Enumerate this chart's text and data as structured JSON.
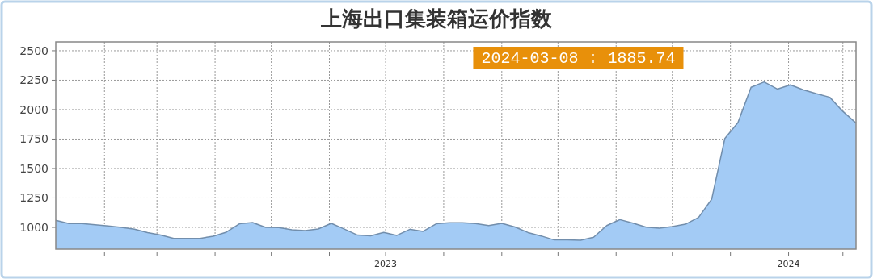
{
  "chart_data": {
    "type": "area",
    "title": "上海出口集装箱运价指数",
    "x": [
      "2023-01-06",
      "2023-01-13",
      "2023-01-20",
      "2023-01-27",
      "2023-02-03",
      "2023-02-10",
      "2023-02-17",
      "2023-02-24",
      "2023-03-03",
      "2023-03-10",
      "2023-03-17",
      "2023-03-24",
      "2023-03-31",
      "2023-04-07",
      "2023-04-14",
      "2023-04-21",
      "2023-04-28",
      "2023-05-05",
      "2023-05-12",
      "2023-05-19",
      "2023-05-26",
      "2023-06-02",
      "2023-06-09",
      "2023-06-16",
      "2023-06-23",
      "2023-06-30",
      "2023-07-07",
      "2023-07-14",
      "2023-07-21",
      "2023-07-28",
      "2023-08-04",
      "2023-08-11",
      "2023-08-18",
      "2023-08-25",
      "2023-09-01",
      "2023-09-08",
      "2023-09-15",
      "2023-09-22",
      "2023-09-29",
      "2023-10-06",
      "2023-10-13",
      "2023-10-20",
      "2023-10-27",
      "2023-11-03",
      "2023-11-10",
      "2023-11-17",
      "2023-11-24",
      "2023-12-01",
      "2023-12-08",
      "2023-12-15",
      "2023-12-22",
      "2023-12-29",
      "2024-01-05",
      "2024-01-12",
      "2024-01-19",
      "2024-01-26",
      "2024-02-02",
      "2024-02-09",
      "2024-02-16",
      "2024-02-23",
      "2024-03-01",
      "2024-03-08"
    ],
    "series": [
      {
        "color": "#a3cbf5",
        "values": [
          1060,
          1032,
          1032,
          1022,
          1012,
          1000,
          985,
          955,
          935,
          906,
          906,
          906,
          925,
          959,
          1030,
          1041,
          1000,
          998,
          979,
          973,
          986,
          1034,
          985,
          934,
          928,
          957,
          932,
          984,
          966,
          1030,
          1040,
          1039,
          1032,
          1016,
          1034,
          1003,
          956,
          927,
          893,
          893,
          890,
          916,
          1015,
          1066,
          1036,
          1002,
          993,
          1006,
          1027,
          1085,
          1240,
          1755,
          1890,
          2190,
          2235,
          2175,
          2210,
          2168,
          2135,
          2105,
          1985,
          1885.74
        ]
      }
    ],
    "xlim": [
      "2023-01-06",
      "2024-03-08"
    ],
    "xticks": [
      {
        "value": "2023-02-01",
        "label": null
      },
      {
        "value": "2023-03-01",
        "label": null
      },
      {
        "value": "2023-04-01",
        "label": null
      },
      {
        "value": "2023-05-01",
        "label": null
      },
      {
        "value": "2023-06-01",
        "label": null
      },
      {
        "value": "2023-07-01",
        "label": "2023"
      },
      {
        "value": "2023-08-01",
        "label": null
      },
      {
        "value": "2023-09-01",
        "label": null
      },
      {
        "value": "2023-10-01",
        "label": null
      },
      {
        "value": "2023-11-01",
        "label": null
      },
      {
        "value": "2023-12-01",
        "label": null
      },
      {
        "value": "2024-01-01",
        "label": null
      },
      {
        "value": "2024-02-01",
        "label": "2024"
      },
      {
        "value": "2024-03-01",
        "label": null
      }
    ],
    "ylim": [
      815,
      2575
    ],
    "yticks": [
      1000,
      1250,
      1500,
      1750,
      2000,
      2250,
      2500
    ],
    "grid": true,
    "annotations": [
      "2024-03-08 : 1885.74"
    ]
  }
}
